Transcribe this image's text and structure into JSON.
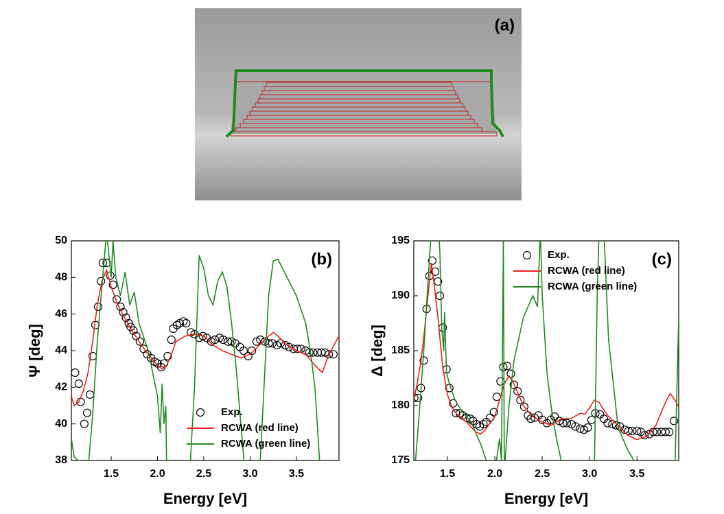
{
  "chart_data": [
    {
      "type": "image",
      "label": "(a)"
    },
    {
      "type": "line",
      "label": "(b)",
      "xlabel": "Energy [eV]",
      "ylabel": "Ψ [deg]",
      "xlim": [
        1.07,
        3.96
      ],
      "ylim": [
        38,
        50
      ],
      "xticks": [
        1.5,
        {
          "value": 2,
          "label": "2.0"
        },
        2.5,
        {
          "value": 3,
          "label": "3.0"
        },
        3.5
      ],
      "yticks": [
        38,
        40,
        42,
        44,
        46,
        48,
        50
      ],
      "legend": "lower right",
      "series": [
        {
          "name": "Exp.",
          "color": "#000000",
          "kind": "markers",
          "x": [
            1.11,
            1.15,
            1.17,
            1.21,
            1.24,
            1.27,
            1.3,
            1.33,
            1.36,
            1.39,
            1.41,
            1.45,
            1.49,
            1.52,
            1.56,
            1.6,
            1.63,
            1.66,
            1.69,
            1.71,
            1.74,
            1.77,
            1.81,
            1.85,
            1.89,
            1.93,
            1.97,
            2.0,
            2.04,
            2.07,
            2.11,
            2.15,
            2.17,
            2.21,
            2.24,
            2.28,
            2.31,
            2.36,
            2.4,
            2.45,
            2.49,
            2.53,
            2.58,
            2.62,
            2.67,
            2.71,
            2.76,
            2.8,
            2.84,
            2.89,
            2.93,
            2.98,
            3.02,
            3.07,
            3.11,
            3.16,
            3.2,
            3.24,
            3.29,
            3.33,
            3.38,
            3.42,
            3.47,
            3.51,
            3.55,
            3.6,
            3.64,
            3.68,
            3.73,
            3.77,
            3.81,
            3.85,
            3.9
          ],
          "values": [
            42.8,
            42.2,
            41.2,
            40.0,
            40.6,
            41.6,
            43.7,
            45.4,
            46.4,
            47.8,
            48.8,
            48.8,
            48.1,
            47.6,
            46.8,
            46.4,
            46.1,
            45.8,
            45.5,
            45.3,
            45.1,
            44.8,
            44.5,
            44.1,
            43.8,
            43.6,
            43.4,
            43.3,
            43.1,
            43.3,
            43.7,
            44.6,
            45.2,
            45.4,
            45.5,
            45.6,
            45.5,
            45.0,
            44.9,
            44.7,
            44.8,
            44.7,
            44.5,
            44.6,
            44.7,
            44.6,
            44.5,
            44.5,
            44.4,
            44.2,
            44.0,
            43.7,
            44.0,
            44.5,
            44.6,
            44.5,
            44.4,
            44.4,
            44.3,
            44.4,
            44.3,
            44.2,
            44.1,
            44.1,
            44.1,
            44.0,
            43.9,
            43.9,
            43.9,
            43.9,
            43.9,
            43.8,
            43.8
          ]
        },
        {
          "name": "RCWA (red line)",
          "color": "#e8201c",
          "kind": "line",
          "x": [
            1.07,
            1.1,
            1.15,
            1.2,
            1.25,
            1.3,
            1.35,
            1.4,
            1.45,
            1.5,
            1.55,
            1.6,
            1.7,
            1.8,
            1.9,
            2.0,
            2.05,
            2.1,
            2.15,
            2.2,
            2.3,
            2.4,
            2.5,
            2.6,
            2.7,
            2.8,
            2.9,
            3.0,
            3.1,
            3.2,
            3.25,
            3.3,
            3.4,
            3.5,
            3.6,
            3.7,
            3.78,
            3.85,
            3.96
          ],
          "values": [
            41.5,
            41.0,
            41.2,
            41.8,
            42.8,
            44.5,
            46.5,
            47.8,
            48.4,
            47.5,
            46.8,
            46.2,
            45.3,
            44.5,
            43.8,
            43.2,
            43.0,
            43.2,
            43.8,
            44.5,
            44.8,
            44.9,
            44.8,
            44.3,
            44.0,
            43.8,
            43.6,
            43.8,
            44.3,
            44.8,
            45.0,
            44.8,
            44.3,
            44.0,
            43.8,
            43.2,
            42.8,
            43.8,
            44.8
          ]
        },
        {
          "name": "RCWA (green line)",
          "color": "#1e8a1e",
          "kind": "line",
          "x": [
            1.07,
            1.1,
            1.25,
            1.3,
            1.35,
            1.4,
            1.45,
            1.5,
            1.52,
            1.55,
            1.6,
            1.65,
            1.7,
            1.75,
            1.8,
            1.9,
            2.0,
            2.03,
            2.05,
            2.07,
            2.09,
            2.1,
            2.12,
            2.35,
            2.4,
            2.45,
            2.5,
            2.55,
            2.6,
            2.65,
            2.7,
            2.75,
            2.8,
            2.85,
            2.9,
            2.95,
            3.1,
            3.15,
            3.2,
            3.25,
            3.3,
            3.4,
            3.5,
            3.6,
            3.65,
            3.7,
            3.75,
            3.8
          ],
          "values": [
            39.2,
            38.2,
            37.5,
            40.5,
            44.5,
            47.5,
            50.5,
            48.0,
            50.0,
            48.0,
            47.0,
            48.3,
            46.5,
            47.2,
            45.5,
            44.0,
            41.5,
            39.5,
            42.2,
            40.0,
            41.0,
            37.0,
            37.0,
            37.5,
            42.0,
            49.2,
            48.5,
            47.0,
            46.5,
            47.8,
            48.3,
            47.5,
            45.5,
            43.0,
            40.0,
            37.0,
            37.0,
            42.0,
            47.0,
            48.9,
            49.0,
            48.0,
            47.0,
            45.5,
            44.0,
            42.0,
            38.0,
            37.0
          ]
        }
      ]
    },
    {
      "type": "line",
      "label": "(c)",
      "xlabel": "Energy [eV]",
      "ylabel": "Δ [deg]",
      "xlim": [
        1.145,
        3.94
      ],
      "ylim": [
        175,
        195
      ],
      "xticks": [
        1.5,
        {
          "value": 2,
          "label": "2.0"
        },
        2.5,
        {
          "value": 3,
          "label": "3.0"
        },
        3.5
      ],
      "yticks": [
        175,
        180,
        185,
        190,
        195
      ],
      "legend": "upper left",
      "series": [
        {
          "name": "Exp.",
          "color": "#000000",
          "kind": "markers",
          "x": [
            1.15,
            1.19,
            1.22,
            1.25,
            1.28,
            1.31,
            1.34,
            1.37,
            1.4,
            1.42,
            1.45,
            1.49,
            1.52,
            1.56,
            1.59,
            1.63,
            1.66,
            1.7,
            1.74,
            1.77,
            1.81,
            1.84,
            1.88,
            1.91,
            1.95,
            1.99,
            2.02,
            2.06,
            2.09,
            2.13,
            2.17,
            2.2,
            2.24,
            2.27,
            2.31,
            2.35,
            2.38,
            2.42,
            2.46,
            2.5,
            2.55,
            2.59,
            2.63,
            2.68,
            2.72,
            2.76,
            2.81,
            2.85,
            2.9,
            2.94,
            2.98,
            3.02,
            3.06,
            3.11,
            3.15,
            3.19,
            3.24,
            3.28,
            3.32,
            3.37,
            3.41,
            3.45,
            3.5,
            3.54,
            3.58,
            3.63,
            3.67,
            3.71,
            3.76,
            3.8,
            3.84,
            3.89
          ],
          "values": [
            180.7,
            180.7,
            181.6,
            184.1,
            188.8,
            191.8,
            193.2,
            192.2,
            191.3,
            190.0,
            187.1,
            183.3,
            181.6,
            180.2,
            179.3,
            179.3,
            179.1,
            178.9,
            178.8,
            178.6,
            178.3,
            178.1,
            178.3,
            178.5,
            178.9,
            179.4,
            180.8,
            182.2,
            183.5,
            183.6,
            182.9,
            181.9,
            181.3,
            180.5,
            179.9,
            179.1,
            178.8,
            178.9,
            179.1,
            178.7,
            178.4,
            178.7,
            179.0,
            178.6,
            178.4,
            178.4,
            178.3,
            178.1,
            177.9,
            177.8,
            178.0,
            178.7,
            179.3,
            179.2,
            178.8,
            178.4,
            178.3,
            178.2,
            178.1,
            177.8,
            177.7,
            177.7,
            177.7,
            177.6,
            177.3,
            177.4,
            177.6,
            177.6,
            177.6,
            177.6,
            177.6,
            178.6
          ]
        },
        {
          "name": "RCWA (red line)",
          "color": "#e8201c",
          "kind": "line",
          "x": [
            1.145,
            1.18,
            1.22,
            1.26,
            1.3,
            1.33,
            1.36,
            1.4,
            1.45,
            1.5,
            1.55,
            1.6,
            1.7,
            1.8,
            1.85,
            1.9,
            2.0,
            2.05,
            2.1,
            2.15,
            2.2,
            2.25,
            2.3,
            2.4,
            2.5,
            2.6,
            2.7,
            2.8,
            2.9,
            2.95,
            3.0,
            3.05,
            3.1,
            3.15,
            3.2,
            3.3,
            3.4,
            3.5,
            3.6,
            3.7,
            3.8,
            3.85,
            3.9,
            3.94
          ],
          "values": [
            180.5,
            182,
            184,
            187,
            190.5,
            193,
            191,
            188,
            183.5,
            181,
            179.8,
            179.2,
            178.5,
            177.6,
            177.4,
            177.8,
            179,
            180.5,
            182,
            182.7,
            182,
            181,
            180,
            179,
            178.5,
            178.2,
            178.8,
            178.8,
            179.3,
            179.2,
            179.8,
            180.5,
            180.3,
            179.6,
            179,
            178.2,
            177.3,
            176.9,
            177.2,
            178.2,
            180.3,
            181.1,
            180.5,
            179.9
          ]
        },
        {
          "name": "RCWA (green line)",
          "color": "#1e8a1e",
          "kind": "line",
          "x": [
            1.145,
            1.2,
            1.25,
            1.3,
            1.33,
            1.4,
            1.42,
            1.44,
            1.46,
            1.47,
            1.49,
            1.52,
            1.58,
            1.65,
            1.75,
            1.85,
            1.95,
            2.0,
            2.05,
            2.07,
            2.09,
            2.1,
            2.15,
            2.2,
            2.3,
            2.4,
            2.45,
            2.48,
            2.5,
            2.55,
            2.6,
            2.65,
            2.7,
            2.72,
            3.05,
            3.08,
            3.1,
            3.15,
            3.2,
            3.3,
            3.4,
            3.5,
            3.9,
            3.94
          ],
          "values": [
            173,
            179,
            185,
            192,
            196,
            197,
            194,
            187,
            185,
            188.5,
            183,
            182,
            180.5,
            179.5,
            178.5,
            176.5,
            174,
            174,
            177,
            175,
            195,
            174,
            180,
            184,
            188,
            190,
            189,
            196,
            190,
            183,
            179.5,
            177,
            175,
            174,
            174,
            190,
            196,
            196,
            186,
            178,
            176,
            174.5,
            174,
            188
          ]
        }
      ]
    }
  ]
}
